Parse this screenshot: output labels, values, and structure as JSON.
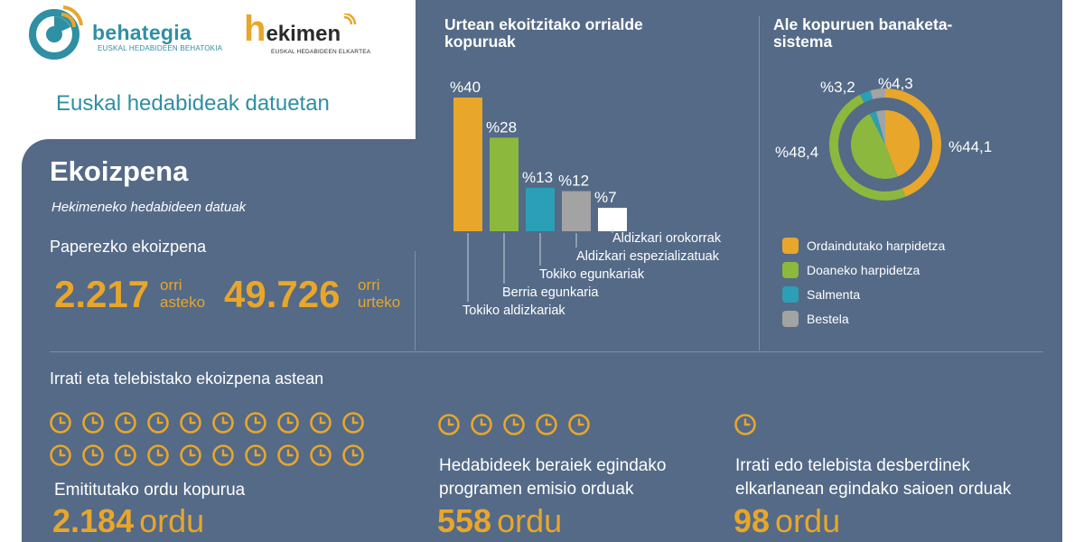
{
  "header": {
    "logo1_name": "behategia",
    "logo1_sub": "EUSKAL HEDABIDEEN BEHATOKIA",
    "logo2_h": "h",
    "logo2_rest": "ekimen",
    "logo2_sub": "EUSKAL HEDABIDEEN ELKARTEA",
    "site_title": "Euskal hedabideak datuetan"
  },
  "section": {
    "title": "Ekoizpena",
    "subtitle": "Hekimeneko hedabideen datuak"
  },
  "paper": {
    "title": "Paperezko ekoizpena",
    "weekly_value": "2.217",
    "weekly_unit_1": "orri",
    "weekly_unit_2": "asteko",
    "yearly_value": "49.726",
    "yearly_unit_1": "orri",
    "yearly_unit_2": "urteko"
  },
  "chart_data": [
    {
      "type": "bar",
      "title": "Urtean ekoitzitako orrialde kopuruak",
      "categories": [
        "Tokiko aldizkariak",
        "Berria egunkaria",
        "Tokiko egunkariak",
        "Aldizkari espezializatuak",
        "Aldizkari orokorrak"
      ],
      "values": [
        40,
        28,
        13,
        12,
        7
      ],
      "labels": [
        "%40",
        "%28",
        "%13",
        "%12",
        "%7"
      ],
      "colors": [
        "#e8a62b",
        "#8db83e",
        "#2a9fb5",
        "#a3a3a3",
        "#ffffff"
      ],
      "ylim": [
        0,
        40
      ],
      "grid": false
    },
    {
      "type": "pie",
      "title": "Ale kopuruen banaketa-sistema",
      "categories": [
        "Ordaindutako harpidetza",
        "Doaneko harpidetza",
        "Salmenta",
        "Bestela"
      ],
      "values": [
        44.1,
        48.4,
        3.2,
        4.3
      ],
      "labels": [
        "%44,1",
        "%48,4",
        "%3,2",
        "%4,3"
      ],
      "colors": [
        "#e8a62b",
        "#8db83e",
        "#2a9fb5",
        "#a3a3a3"
      ],
      "legend": "bottom"
    }
  ],
  "rtv": {
    "title": "Irrati eta telebistako ekoizpena astean",
    "blocks": [
      {
        "label": "Emititutako ordu kopurua",
        "value": "2.184",
        "unit": "ordu",
        "clocks": 20
      },
      {
        "label": "Hedabideek beraiek egindako programen emisio orduak",
        "value": "558",
        "unit": "ordu",
        "clocks": 5
      },
      {
        "label": "Irrati edo telebista desberdinek elkarlanean egindako saioen orduak",
        "value": "98",
        "unit": "ordu",
        "clocks": 1
      }
    ]
  },
  "colors": {
    "panel": "#546a87",
    "accent_orange": "#e8a62b",
    "accent_teal": "#2f8fa3"
  }
}
